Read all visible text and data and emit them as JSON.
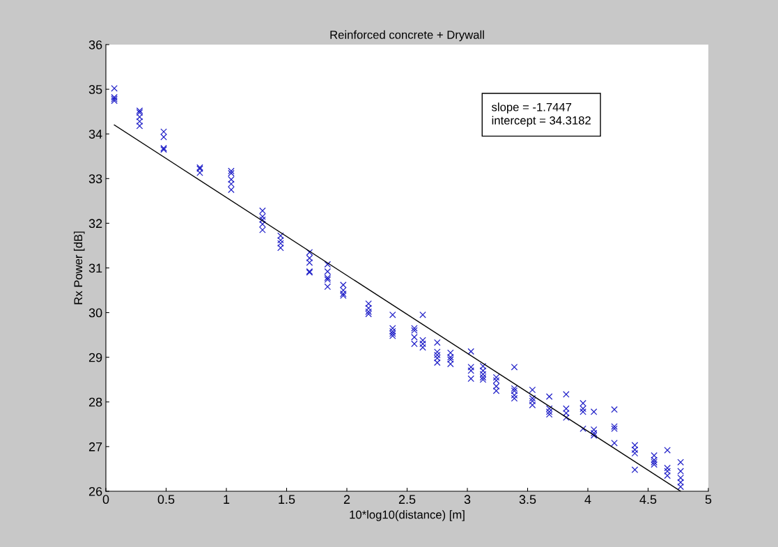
{
  "chart_data": {
    "type": "scatter",
    "title": "Reinforced concrete + Drywall",
    "xlabel": "10*log10(distance) [m]",
    "ylabel": "Rx Power [dB]",
    "xlim": [
      0,
      5
    ],
    "xticks": [
      0,
      0.5,
      1,
      1.5,
      2,
      2.5,
      3,
      3.5,
      4,
      4.5,
      5
    ],
    "ylim": [
      26,
      36
    ],
    "yticks": [
      26,
      27,
      28,
      29,
      30,
      31,
      32,
      33,
      34,
      35,
      36
    ],
    "grid": false,
    "legend": false,
    "annotations": [
      "slope = -1.7447\nintercept = 34.3182"
    ],
    "series": [
      {
        "color": "#2020c8",
        "marker": "cross",
        "x": [
          0.07,
          0.07,
          0.07,
          0.07,
          0.28,
          0.28,
          0.28,
          0.28,
          0.28,
          0.48,
          0.48,
          0.48,
          0.48,
          0.78,
          0.78,
          0.78,
          1.04,
          1.04,
          1.04,
          1.04,
          1.04,
          1.3,
          1.3,
          1.3,
          1.3,
          1.3,
          1.45,
          1.45,
          1.45,
          1.45,
          1.69,
          1.69,
          1.69,
          1.69,
          1.69,
          1.84,
          1.84,
          1.84,
          1.84,
          1.84,
          1.97,
          1.97,
          1.97,
          1.97,
          2.18,
          2.18,
          2.18,
          2.18,
          2.38,
          2.38,
          2.38,
          2.38,
          2.38,
          2.56,
          2.56,
          2.56,
          2.56,
          2.63,
          2.63,
          2.63,
          2.63,
          2.75,
          2.75,
          2.75,
          2.75,
          2.75,
          2.86,
          2.86,
          2.86,
          2.86,
          3.03,
          3.03,
          3.03,
          3.03,
          3.13,
          3.13,
          3.13,
          3.13,
          3.13,
          3.24,
          3.24,
          3.24,
          3.24,
          3.39,
          3.39,
          3.39,
          3.39,
          3.39,
          3.54,
          3.54,
          3.54,
          3.54,
          3.68,
          3.68,
          3.68,
          3.68,
          3.82,
          3.82,
          3.82,
          3.82,
          3.96,
          3.96,
          3.96,
          3.96,
          4.05,
          4.05,
          4.05,
          4.05,
          4.22,
          4.22,
          4.22,
          4.22,
          4.39,
          4.39,
          4.39,
          4.39,
          4.55,
          4.55,
          4.55,
          4.55,
          4.66,
          4.66,
          4.66,
          4.66,
          4.77,
          4.77,
          4.77,
          4.77,
          4.77
        ],
        "values": [
          35.02,
          34.82,
          34.78,
          34.74,
          34.52,
          34.48,
          34.38,
          34.28,
          34.18,
          34.05,
          33.93,
          33.68,
          33.65,
          33.25,
          33.22,
          33.13,
          33.17,
          33.12,
          32.98,
          32.88,
          32.75,
          32.28,
          32.15,
          32.08,
          31.98,
          31.85,
          31.72,
          31.62,
          31.55,
          31.45,
          31.35,
          31.22,
          31.12,
          30.92,
          30.9,
          31.08,
          30.92,
          30.78,
          30.74,
          30.58,
          30.62,
          30.5,
          30.42,
          30.38,
          30.2,
          30.1,
          30.02,
          29.97,
          29.95,
          29.65,
          29.58,
          29.53,
          29.48,
          29.65,
          29.6,
          29.45,
          29.3,
          29.95,
          29.38,
          29.3,
          29.22,
          29.33,
          29.12,
          29.05,
          28.98,
          28.88,
          29.1,
          29.0,
          28.95,
          28.85,
          29.13,
          28.78,
          28.7,
          28.52,
          28.8,
          28.7,
          28.62,
          28.55,
          28.5,
          28.55,
          28.48,
          28.35,
          28.25,
          28.78,
          28.3,
          28.25,
          28.15,
          28.08,
          28.27,
          28.08,
          28.02,
          27.93,
          28.12,
          27.85,
          27.78,
          27.72,
          28.17,
          27.85,
          27.75,
          27.65,
          27.97,
          27.85,
          27.78,
          27.4,
          27.78,
          27.38,
          27.3,
          27.25,
          27.83,
          27.45,
          27.4,
          27.08,
          27.03,
          26.93,
          26.85,
          26.48,
          26.8,
          26.7,
          26.65,
          26.6,
          26.92,
          26.52,
          26.45,
          26.35,
          26.65,
          26.45,
          26.3,
          26.2,
          26.1
        ]
      },
      {
        "type": "line",
        "color": "#000000",
        "marker": "none",
        "line_style": "solid",
        "x": [
          0.07,
          4.77
        ],
        "values": [
          34.2,
          26.0
        ]
      }
    ]
  }
}
